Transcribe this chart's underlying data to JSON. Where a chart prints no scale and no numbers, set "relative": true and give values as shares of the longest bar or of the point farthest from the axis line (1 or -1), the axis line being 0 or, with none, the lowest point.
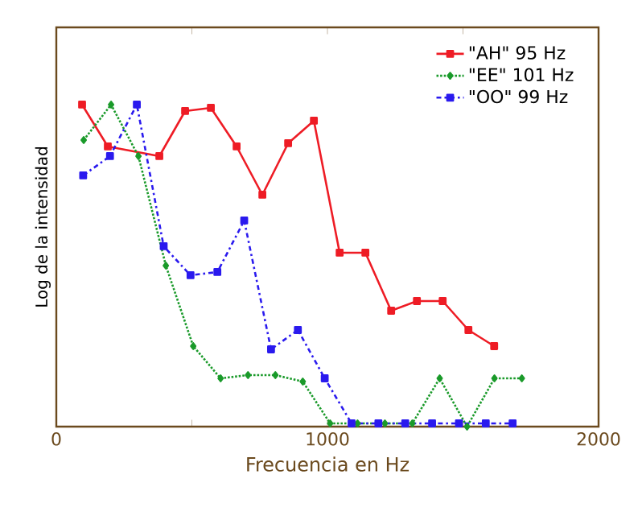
{
  "chart_data": {
    "type": "line",
    "relative": true,
    "xlabel": "Frecuencia en Hz",
    "ylabel": "Log de la intensidad",
    "xlim": [
      0,
      2000
    ],
    "xticks": [
      0,
      {
        "value": 500,
        "label": null
      },
      1000,
      {
        "value": 1500,
        "label": null
      },
      2000
    ],
    "legend": "top right",
    "grid": false,
    "series": [
      {
        "name": "\"AH\" 95 Hz",
        "color": "#ee1c25",
        "marker": "square",
        "line_style": "solid",
        "x": [
          95,
          190,
          380,
          475,
          570,
          665,
          760,
          855,
          950,
          1045,
          1140,
          1235,
          1330,
          1425,
          1520,
          1615
        ],
        "values": [
          1.0,
          0.87,
          0.84,
          0.98,
          0.99,
          0.87,
          0.72,
          0.88,
          0.95,
          0.54,
          0.54,
          0.36,
          0.39,
          0.39,
          0.3,
          0.25
        ]
      },
      {
        "name": "\"EE\" 101 Hz",
        "color": "#1a9a2a",
        "marker": "diamond",
        "line_style": "dotted",
        "x": [
          101,
          202,
          303,
          404,
          505,
          606,
          707,
          808,
          909,
          1010,
          1111,
          1212,
          1313,
          1414,
          1515,
          1616,
          1717
        ],
        "values": [
          0.89,
          1.0,
          0.84,
          0.5,
          0.25,
          0.15,
          0.16,
          0.16,
          0.14,
          0.01,
          0.01,
          0.01,
          0.01,
          0.15,
          0.0,
          0.15,
          0.15
        ]
      },
      {
        "name": "\"OO\" 99 Hz",
        "color": "#2a1aee",
        "marker": "square",
        "line_style": "dashed",
        "x": [
          99,
          198,
          297,
          396,
          495,
          594,
          693,
          792,
          891,
          990,
          1089,
          1188,
          1287,
          1386,
          1485,
          1584,
          1683
        ],
        "values": [
          0.78,
          0.84,
          1.0,
          0.56,
          0.47,
          0.48,
          0.64,
          0.24,
          0.3,
          0.15,
          0.01,
          0.01,
          0.01,
          0.01,
          0.01,
          0.01,
          0.01
        ]
      }
    ]
  }
}
